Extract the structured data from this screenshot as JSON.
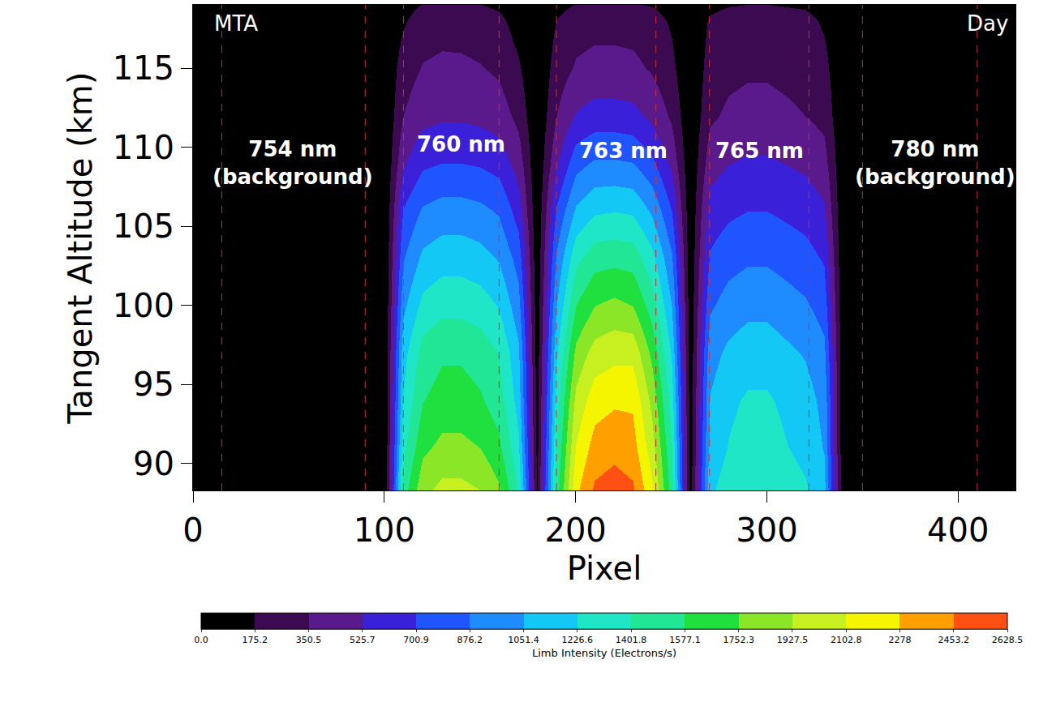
{
  "chart_data": {
    "type": "contour",
    "x_label": "Pixel",
    "y_label": "Tangent Altitude (km)",
    "xlim": [
      0,
      430
    ],
    "xticks": [
      0,
      100,
      200,
      300,
      400
    ],
    "ylim": [
      88.3,
      119
    ],
    "yticks": [
      90,
      95,
      100,
      105,
      110,
      115
    ],
    "x": [
      0,
      10,
      20,
      30,
      40,
      50,
      60,
      70,
      80,
      90,
      100,
      110,
      120,
      130,
      140,
      150,
      160,
      170,
      180,
      190,
      200,
      210,
      220,
      230,
      240,
      250,
      260,
      270,
      280,
      290,
      300,
      310,
      320,
      330,
      340,
      350,
      360,
      370,
      380,
      390,
      400,
      410,
      420,
      430
    ],
    "y": [
      88,
      91,
      94,
      97,
      100,
      103,
      106,
      109,
      112,
      115,
      118,
      121
    ],
    "z": [
      [
        0,
        0,
        0,
        0,
        0,
        0,
        0,
        0,
        0,
        0,
        0,
        1500,
        1900,
        2000,
        2000,
        1950,
        1800,
        1400,
        150,
        1500,
        2250,
        2500,
        2550,
        2500,
        2150,
        1500,
        100,
        1200,
        1330,
        1400,
        1400,
        1330,
        1260,
        1120,
        0,
        0,
        0,
        0,
        0,
        0,
        0,
        0,
        0,
        0
      ],
      [
        0,
        0,
        0,
        0,
        0,
        0,
        0,
        0,
        0,
        0,
        0,
        1350,
        1710,
        1800,
        1800,
        1750,
        1620,
        1260,
        120,
        1410,
        2115,
        2350,
        2400,
        2350,
        2000,
        1410,
        80,
        1100,
        1235,
        1300,
        1300,
        1235,
        1170,
        1040,
        0,
        0,
        0,
        0,
        0,
        0,
        0,
        0,
        0,
        0
      ],
      [
        0,
        0,
        0,
        0,
        0,
        0,
        0,
        0,
        0,
        0,
        0,
        1240,
        1570,
        1650,
        1650,
        1600,
        1485,
        1155,
        100,
        1320,
        1980,
        2200,
        2250,
        2250,
        1870,
        1320,
        70,
        1060,
        1190,
        1250,
        1250,
        1190,
        1125,
        1000,
        0,
        0,
        0,
        0,
        0,
        0,
        0,
        0,
        0,
        0
      ],
      [
        0,
        0,
        0,
        0,
        0,
        0,
        0,
        0,
        0,
        0,
        0,
        1160,
        1470,
        1550,
        1550,
        1500,
        1395,
        1085,
        80,
        1200,
        1800,
        2000,
        2050,
        2050,
        1700,
        1200,
        60,
        980,
        1090,
        1150,
        1150,
        1090,
        1035,
        920,
        0,
        0,
        0,
        0,
        0,
        0,
        0,
        0,
        0,
        0
      ],
      [
        0,
        0,
        0,
        0,
        0,
        0,
        0,
        0,
        0,
        0,
        0,
        1010,
        1280,
        1350,
        1350,
        1310,
        1215,
        945,
        60,
        1050,
        1575,
        1750,
        1800,
        1750,
        1490,
        1050,
        50,
        850,
        950,
        1000,
        1000,
        950,
        900,
        800,
        0,
        0,
        0,
        0,
        0,
        0,
        0,
        0,
        0,
        0
      ],
      [
        0,
        0,
        0,
        0,
        0,
        0,
        0,
        0,
        0,
        0,
        0,
        860,
        1090,
        1150,
        1150,
        1115,
        1035,
        805,
        40,
        900,
        1350,
        1500,
        1520,
        1500,
        1275,
        900,
        40,
        720,
        810,
        850,
        850,
        810,
        765,
        680,
        0,
        0,
        0,
        0,
        0,
        0,
        0,
        0,
        0,
        0
      ],
      [
        0,
        0,
        0,
        0,
        0,
        0,
        0,
        0,
        0,
        0,
        0,
        710,
        900,
        950,
        950,
        920,
        855,
        620,
        30,
        720,
        1080,
        1200,
        1220,
        1200,
        1020,
        700,
        30,
        600,
        665,
        700,
        700,
        665,
        630,
        550,
        0,
        0,
        0,
        0,
        0,
        0,
        0,
        0,
        0,
        0
      ],
      [
        0,
        0,
        0,
        0,
        0,
        0,
        0,
        0,
        0,
        0,
        0,
        500,
        665,
        700,
        700,
        680,
        630,
        450,
        20,
        500,
        810,
        900,
        900,
        880,
        740,
        480,
        20,
        450,
        520,
        550,
        550,
        520,
        490,
        420,
        0,
        0,
        0,
        0,
        0,
        0,
        0,
        0,
        0,
        0
      ],
      [
        0,
        0,
        0,
        0,
        0,
        0,
        0,
        0,
        0,
        0,
        0,
        350,
        470,
        500,
        500,
        480,
        440,
        300,
        10,
        350,
        540,
        600,
        600,
        580,
        480,
        320,
        10,
        320,
        380,
        400,
        400,
        380,
        350,
        300,
        0,
        0,
        0,
        0,
        0,
        0,
        0,
        0,
        0,
        0
      ],
      [
        0,
        0,
        0,
        0,
        0,
        0,
        0,
        0,
        0,
        0,
        0,
        270,
        360,
        380,
        380,
        360,
        320,
        200,
        0,
        260,
        370,
        400,
        400,
        390,
        330,
        220,
        0,
        260,
        310,
        330,
        330,
        310,
        290,
        230,
        0,
        0,
        0,
        0,
        0,
        0,
        0,
        0,
        0,
        0
      ],
      [
        0,
        0,
        0,
        0,
        0,
        0,
        0,
        0,
        0,
        0,
        0,
        150,
        280,
        300,
        290,
        270,
        220,
        100,
        0,
        180,
        280,
        300,
        300,
        290,
        250,
        150,
        0,
        200,
        250,
        270,
        270,
        250,
        230,
        150,
        0,
        0,
        0,
        0,
        0,
        0,
        0,
        0,
        0,
        0
      ],
      [
        0,
        0,
        0,
        0,
        0,
        0,
        0,
        0,
        0,
        0,
        0,
        0,
        0,
        0,
        0,
        0,
        0,
        0,
        0,
        0,
        0,
        0,
        0,
        0,
        0,
        0,
        0,
        0,
        0,
        0,
        0,
        0,
        0,
        0,
        0,
        0,
        0,
        0,
        0,
        0,
        0,
        0,
        0,
        0
      ]
    ],
    "colorbar": {
      "title": "Limb Intensity (Electrons/s)",
      "ticks": [
        {
          "value": 0,
          "label": "0.0"
        },
        175.2,
        350.5,
        525.7,
        700.9,
        876.2,
        1051.4,
        1226.6,
        1401.8,
        1577.1,
        1752.3,
        1927.5,
        2102.8,
        2278.0,
        2453.2,
        2628.5
      ],
      "colors": [
        "#000000",
        "#3c0a50",
        "#5a1a8c",
        "#3a20d8",
        "#1f55ff",
        "#1e8cff",
        "#14c8f5",
        "#20e6c8",
        "#20e696",
        "#20e040",
        "#8ce628",
        "#c8f020",
        "#f5f500",
        "#ffa000",
        "#ff5014"
      ]
    },
    "boundary_pixels": [
      15,
      90,
      110,
      160,
      190,
      242,
      270,
      322,
      350,
      410
    ],
    "annotations": [
      {
        "lines": [
          "MTA"
        ],
        "x": 10,
        "y": 117.8,
        "align": "left"
      },
      {
        "lines": [
          "Day"
        ],
        "x": 427,
        "y": 117.8,
        "align": "right"
      },
      {
        "lines": [
          "754 nm",
          "(background)"
        ],
        "x": 52,
        "y": 109,
        "align": "center"
      },
      {
        "lines": [
          "760 nm"
        ],
        "x": 140,
        "y": 110.2,
        "align": "center"
      },
      {
        "lines": [
          "763 nm"
        ],
        "x": 225,
        "y": 109.8,
        "align": "center"
      },
      {
        "lines": [
          "765 nm"
        ],
        "x": 296,
        "y": 109.8,
        "align": "center"
      },
      {
        "lines": [
          "780 nm",
          "(background)"
        ],
        "x": 388,
        "y": 109,
        "align": "center"
      }
    ]
  }
}
